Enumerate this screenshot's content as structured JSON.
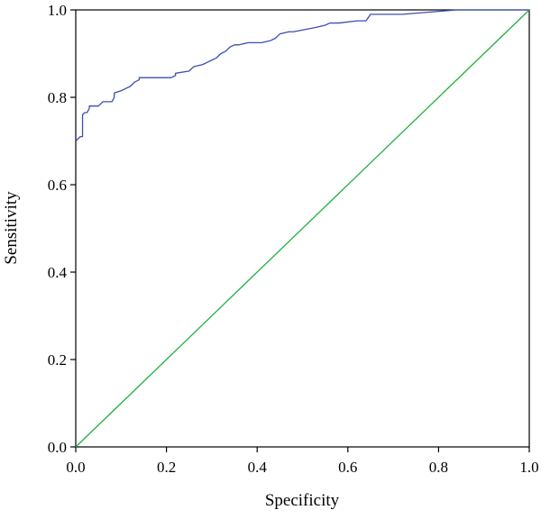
{
  "chart_data": {
    "type": "line",
    "title": "",
    "xlabel": "Specificity",
    "ylabel": "Sensitivity",
    "xlim": [
      0.0,
      1.0
    ],
    "ylim": [
      0.0,
      1.0
    ],
    "x_ticks": [
      "0.0",
      "0.2",
      "0.4",
      "0.6",
      "0.8",
      "1.0"
    ],
    "y_ticks": [
      "0.0",
      "0.2",
      "0.4",
      "0.6",
      "0.8",
      "1.0"
    ],
    "grid": false,
    "legend": "none",
    "series": [
      {
        "color": "#3b4fb0",
        "x": [
          0.0,
          0.0,
          0.01,
          0.015,
          0.015,
          0.02,
          0.025,
          0.03,
          0.03,
          0.05,
          0.06,
          0.07,
          0.08,
          0.085,
          0.085,
          0.1,
          0.11,
          0.12,
          0.13,
          0.14,
          0.14,
          0.15,
          0.21,
          0.22,
          0.22,
          0.25,
          0.26,
          0.28,
          0.29,
          0.3,
          0.31,
          0.32,
          0.33,
          0.34,
          0.35,
          0.36,
          0.38,
          0.41,
          0.43,
          0.44,
          0.45,
          0.47,
          0.48,
          0.53,
          0.55,
          0.56,
          0.58,
          0.62,
          0.64,
          0.65,
          0.66,
          0.72,
          0.84,
          1.0
        ],
        "y": [
          0.7,
          0.7,
          0.71,
          0.71,
          0.76,
          0.765,
          0.765,
          0.775,
          0.78,
          0.78,
          0.79,
          0.79,
          0.79,
          0.8,
          0.81,
          0.815,
          0.82,
          0.825,
          0.835,
          0.84,
          0.845,
          0.845,
          0.845,
          0.85,
          0.855,
          0.86,
          0.87,
          0.875,
          0.88,
          0.885,
          0.89,
          0.9,
          0.905,
          0.915,
          0.92,
          0.92,
          0.925,
          0.925,
          0.93,
          0.935,
          0.945,
          0.95,
          0.95,
          0.96,
          0.965,
          0.97,
          0.97,
          0.975,
          0.975,
          0.99,
          0.99,
          0.99,
          1.0,
          1.0
        ]
      },
      {
        "color": "#22b040",
        "x": [
          0.0,
          1.0
        ],
        "y": [
          0.0,
          1.0
        ]
      }
    ]
  }
}
